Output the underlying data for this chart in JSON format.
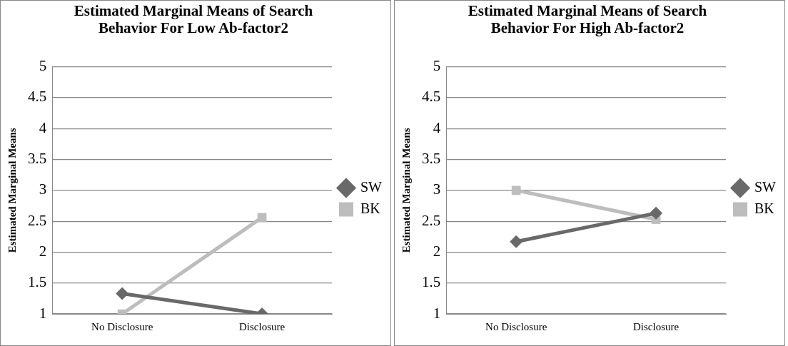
{
  "chart_data": [
    {
      "type": "line",
      "title": "Estimated Marginal Means of Search Behavior For Low Ab-factor2",
      "ylabel": "Estimated Marginal Means",
      "categories": [
        "No Disclosure",
        "Disclosure"
      ],
      "series": [
        {
          "name": "SW",
          "color": "#696969",
          "marker": "diamond",
          "values": [
            1.33,
            1.0
          ]
        },
        {
          "name": "BK",
          "color": "#bdbdbd",
          "marker": "square",
          "values": [
            1.0,
            2.56
          ]
        }
      ],
      "ylim": [
        1,
        5
      ],
      "yticks": [
        1,
        1.5,
        2,
        2.5,
        3,
        3.5,
        4,
        4.5,
        5
      ],
      "grid": "y",
      "legend": "right",
      "line_style": "solid"
    },
    {
      "type": "line",
      "title": "Estimated Marginal Means of Search Behavior For High Ab-factor2",
      "ylabel": "Estimated Marginal Means",
      "categories": [
        "No Disclosure",
        "Disclosure"
      ],
      "series": [
        {
          "name": "SW",
          "color": "#696969",
          "marker": "diamond",
          "values": [
            2.17,
            2.63
          ]
        },
        {
          "name": "BK",
          "color": "#bdbdbd",
          "marker": "square",
          "values": [
            3.0,
            2.53
          ]
        }
      ],
      "ylim": [
        1,
        5
      ],
      "yticks": [
        1,
        1.5,
        2,
        2.5,
        3,
        3.5,
        4,
        4.5,
        5
      ],
      "grid": "y",
      "legend": "right",
      "line_style": "solid"
    }
  ]
}
